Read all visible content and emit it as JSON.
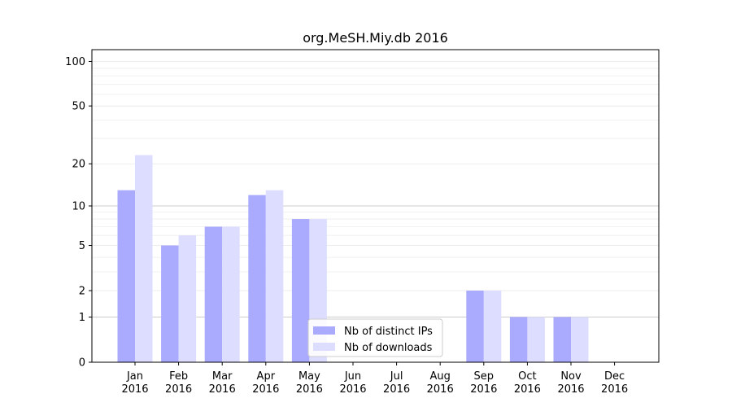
{
  "chart_data": {
    "type": "bar",
    "title": "org.MeSH.Miy.db 2016",
    "xlabel": "",
    "ylabel": "",
    "y_scale": "log(1+y)",
    "ylim": [
      0,
      120
    ],
    "y_ticks": [
      0,
      1,
      2,
      5,
      10,
      20,
      50,
      100
    ],
    "grid": "horizontal",
    "legend_position": "lower-center",
    "categories": [
      "Jan\n2016",
      "Feb\n2016",
      "Mar\n2016",
      "Apr\n2016",
      "May\n2016",
      "Jun\n2016",
      "Jul\n2016",
      "Aug\n2016",
      "Sep\n2016",
      "Oct\n2016",
      "Nov\n2016",
      "Dec\n2016"
    ],
    "series": [
      {
        "name": "Nb of distinct IPs",
        "color": "#aaaaff",
        "values": [
          13,
          5,
          7,
          12,
          8,
          0,
          0,
          0,
          2,
          1,
          1,
          0
        ]
      },
      {
        "name": "Nb of downloads",
        "color": "#ddddff",
        "values": [
          23,
          6,
          7,
          13,
          8,
          0,
          0,
          0,
          2,
          1,
          1,
          0
        ]
      }
    ]
  }
}
